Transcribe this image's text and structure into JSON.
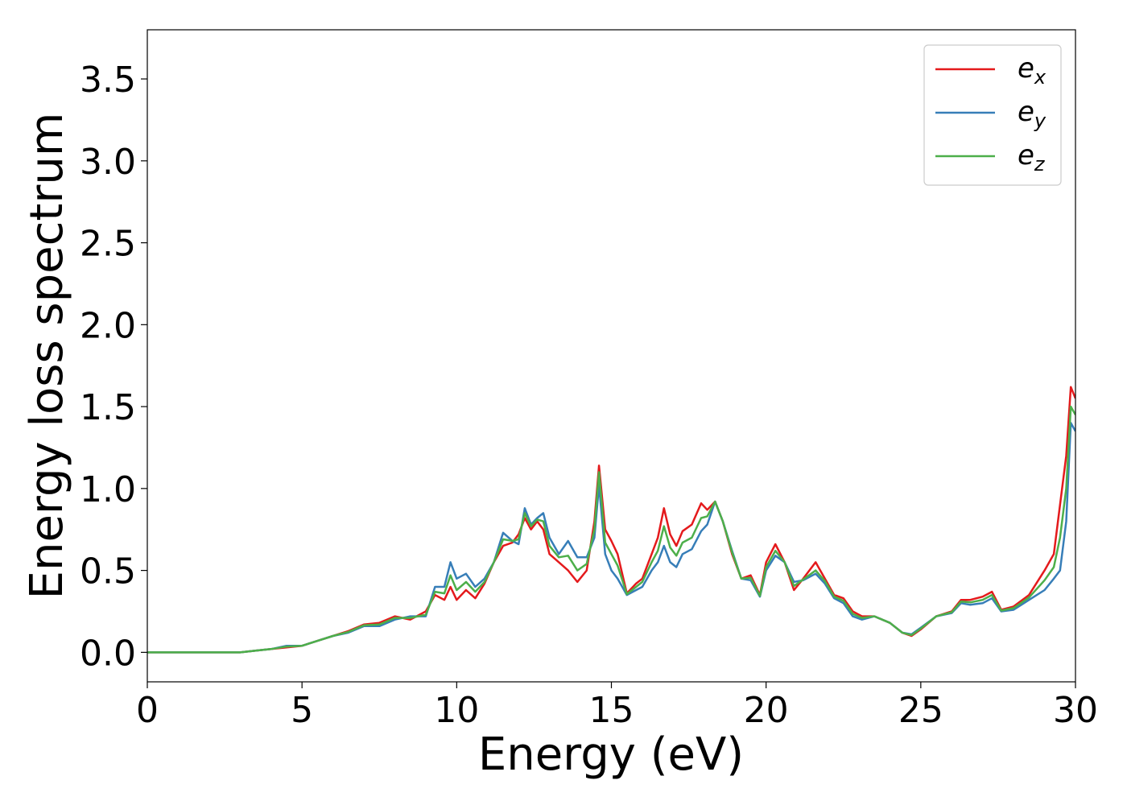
{
  "chart_data": {
    "type": "line",
    "xlabel": "Energy (eV)",
    "ylabel": "Energy loss spectrum",
    "xlim": [
      0,
      30
    ],
    "ylim": [
      -0.18,
      3.8
    ],
    "xticks": [
      "0",
      "5",
      "10",
      "15",
      "20",
      "25",
      "30"
    ],
    "yticks": [
      "0.0",
      "0.5",
      "1.0",
      "1.5",
      "2.0",
      "2.5",
      "3.0",
      "3.5"
    ],
    "grid": false,
    "legend_position": "top-right",
    "series": [
      {
        "name": "e",
        "subscript": "x",
        "color": "#e41a1c",
        "x": [
          0,
          1,
          2,
          3,
          3.5,
          4,
          4.5,
          5,
          5.5,
          6,
          6.5,
          7,
          7.5,
          8,
          8.5,
          9,
          9.3,
          9.6,
          9.8,
          10,
          10.3,
          10.6,
          10.9,
          11.2,
          11.5,
          11.8,
          12.0,
          12.2,
          12.4,
          12.6,
          12.8,
          13.0,
          13.3,
          13.6,
          13.9,
          14.2,
          14.45,
          14.6,
          14.8,
          15.0,
          15.2,
          15.5,
          15.8,
          16.0,
          16.3,
          16.5,
          16.7,
          16.9,
          17.1,
          17.3,
          17.6,
          17.9,
          18.1,
          18.35,
          18.6,
          18.9,
          19.2,
          19.5,
          19.8,
          20.0,
          20.3,
          20.6,
          20.9,
          21.2,
          21.6,
          21.9,
          22.2,
          22.5,
          22.8,
          23.1,
          23.5,
          24.0,
          24.4,
          24.7,
          25.0,
          25.5,
          26.0,
          26.3,
          26.6,
          27.0,
          27.3,
          27.6,
          28.0,
          28.5,
          29.0,
          29.3,
          29.5,
          29.7,
          29.85,
          30.0
        ],
        "y": [
          0,
          0,
          0,
          0,
          0.01,
          0.02,
          0.03,
          0.04,
          0.07,
          0.1,
          0.13,
          0.17,
          0.18,
          0.22,
          0.2,
          0.25,
          0.35,
          0.32,
          0.4,
          0.32,
          0.38,
          0.33,
          0.42,
          0.55,
          0.65,
          0.67,
          0.72,
          0.82,
          0.75,
          0.8,
          0.75,
          0.6,
          0.55,
          0.5,
          0.43,
          0.5,
          0.8,
          1.14,
          0.75,
          0.68,
          0.6,
          0.36,
          0.42,
          0.45,
          0.6,
          0.7,
          0.88,
          0.72,
          0.65,
          0.74,
          0.78,
          0.91,
          0.87,
          0.92,
          0.8,
          0.6,
          0.45,
          0.47,
          0.35,
          0.55,
          0.66,
          0.55,
          0.38,
          0.45,
          0.55,
          0.45,
          0.35,
          0.33,
          0.25,
          0.22,
          0.22,
          0.18,
          0.12,
          0.1,
          0.14,
          0.22,
          0.25,
          0.32,
          0.32,
          0.34,
          0.37,
          0.26,
          0.28,
          0.35,
          0.5,
          0.6,
          0.9,
          1.2,
          1.62,
          1.55
        ]
      },
      {
        "name": "e",
        "subscript": "y",
        "color": "#377eb8",
        "x": [
          0,
          1,
          2,
          3,
          3.5,
          4,
          4.5,
          5,
          5.5,
          6,
          6.5,
          7,
          7.5,
          8,
          8.5,
          9,
          9.3,
          9.6,
          9.8,
          10,
          10.3,
          10.6,
          10.9,
          11.2,
          11.5,
          11.8,
          12.0,
          12.2,
          12.4,
          12.6,
          12.8,
          13.0,
          13.3,
          13.6,
          13.9,
          14.2,
          14.45,
          14.6,
          14.8,
          15.0,
          15.2,
          15.5,
          15.8,
          16.0,
          16.3,
          16.5,
          16.7,
          16.9,
          17.1,
          17.3,
          17.6,
          17.9,
          18.1,
          18.35,
          18.6,
          18.9,
          19.2,
          19.5,
          19.8,
          20.0,
          20.3,
          20.6,
          20.9,
          21.2,
          21.6,
          21.9,
          22.2,
          22.5,
          22.8,
          23.1,
          23.5,
          24.0,
          24.4,
          24.7,
          25.0,
          25.5,
          26.0,
          26.3,
          26.6,
          27.0,
          27.3,
          27.6,
          28.0,
          28.5,
          29.0,
          29.3,
          29.5,
          29.7,
          29.85,
          30.0
        ],
        "y": [
          0,
          0,
          0,
          0,
          0.01,
          0.02,
          0.04,
          0.04,
          0.07,
          0.1,
          0.12,
          0.16,
          0.16,
          0.2,
          0.22,
          0.22,
          0.4,
          0.4,
          0.55,
          0.45,
          0.48,
          0.4,
          0.45,
          0.55,
          0.73,
          0.68,
          0.66,
          0.88,
          0.78,
          0.82,
          0.85,
          0.7,
          0.6,
          0.68,
          0.58,
          0.58,
          0.7,
          1.02,
          0.6,
          0.5,
          0.45,
          0.35,
          0.38,
          0.4,
          0.5,
          0.55,
          0.65,
          0.55,
          0.52,
          0.6,
          0.63,
          0.74,
          0.78,
          0.92,
          0.8,
          0.62,
          0.45,
          0.44,
          0.34,
          0.5,
          0.59,
          0.55,
          0.43,
          0.44,
          0.48,
          0.42,
          0.33,
          0.3,
          0.22,
          0.2,
          0.22,
          0.18,
          0.12,
          0.11,
          0.15,
          0.22,
          0.24,
          0.3,
          0.29,
          0.3,
          0.33,
          0.25,
          0.26,
          0.32,
          0.38,
          0.45,
          0.5,
          0.8,
          1.4,
          1.35
        ]
      },
      {
        "name": "e",
        "subscript": "z",
        "color": "#4daf4a",
        "x": [
          0,
          1,
          2,
          3,
          3.5,
          4,
          4.5,
          5,
          5.5,
          6,
          6.5,
          7,
          7.5,
          8,
          8.5,
          9,
          9.3,
          9.6,
          9.8,
          10,
          10.3,
          10.6,
          10.9,
          11.2,
          11.5,
          11.8,
          12.0,
          12.2,
          12.4,
          12.6,
          12.8,
          13.0,
          13.3,
          13.6,
          13.9,
          14.2,
          14.45,
          14.6,
          14.8,
          15.0,
          15.2,
          15.5,
          15.8,
          16.0,
          16.3,
          16.5,
          16.7,
          16.9,
          17.1,
          17.3,
          17.6,
          17.9,
          18.1,
          18.35,
          18.6,
          18.9,
          19.2,
          19.5,
          19.8,
          20.0,
          20.3,
          20.6,
          20.9,
          21.2,
          21.6,
          21.9,
          22.2,
          22.5,
          22.8,
          23.1,
          23.5,
          24.0,
          24.4,
          24.7,
          25.0,
          25.5,
          26.0,
          26.3,
          26.6,
          27.0,
          27.3,
          27.6,
          28.0,
          28.5,
          29.0,
          29.3,
          29.5,
          29.7,
          29.85,
          30.0
        ],
        "y": [
          0,
          0,
          0,
          0,
          0.01,
          0.02,
          0.035,
          0.04,
          0.07,
          0.1,
          0.125,
          0.165,
          0.17,
          0.21,
          0.21,
          0.23,
          0.37,
          0.36,
          0.47,
          0.38,
          0.43,
          0.37,
          0.43,
          0.55,
          0.69,
          0.68,
          0.69,
          0.85,
          0.77,
          0.81,
          0.8,
          0.65,
          0.58,
          0.59,
          0.5,
          0.54,
          0.75,
          1.1,
          0.67,
          0.6,
          0.53,
          0.355,
          0.4,
          0.43,
          0.55,
          0.62,
          0.77,
          0.64,
          0.59,
          0.67,
          0.7,
          0.82,
          0.83,
          0.92,
          0.8,
          0.61,
          0.45,
          0.455,
          0.345,
          0.52,
          0.62,
          0.55,
          0.405,
          0.445,
          0.5,
          0.435,
          0.34,
          0.315,
          0.235,
          0.21,
          0.22,
          0.18,
          0.12,
          0.105,
          0.145,
          0.22,
          0.245,
          0.31,
          0.305,
          0.32,
          0.35,
          0.255,
          0.27,
          0.335,
          0.44,
          0.52,
          0.7,
          1.0,
          1.5,
          1.45
        ]
      }
    ]
  }
}
